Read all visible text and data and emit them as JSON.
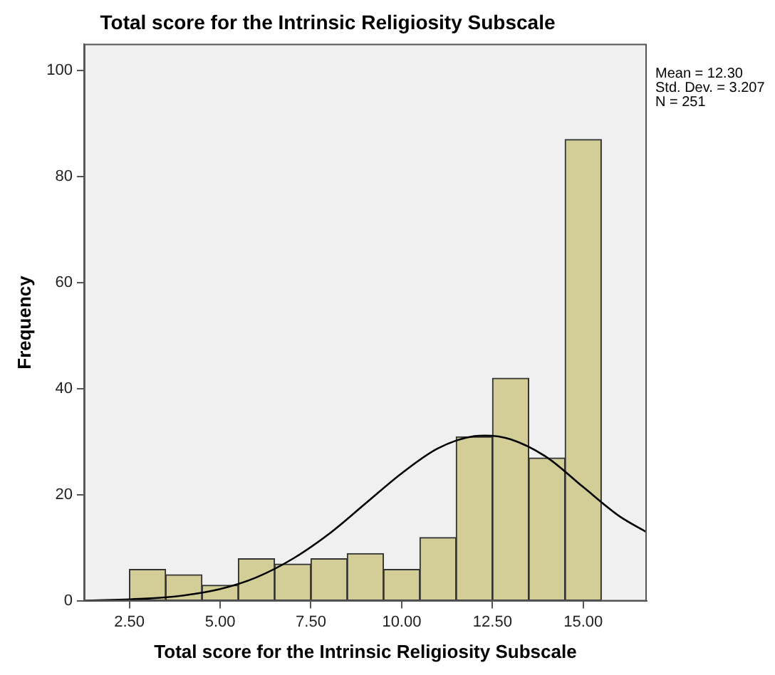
{
  "chart_data": {
    "type": "histogram",
    "title": "Total score for the Intrinsic Religiosity Subscale",
    "xlabel": "Total score for the Intrinsic Religiosity Subscale",
    "ylabel": "Frequency",
    "bins": [
      2.5,
      3.5,
      4.5,
      5.5,
      6.5,
      7.5,
      8.5,
      9.5,
      10.5,
      11.5,
      12.5,
      13.5,
      14.5,
      15.5
    ],
    "values": [
      6,
      5,
      3,
      8,
      7,
      8,
      9,
      6,
      12,
      31,
      42,
      27,
      87
    ],
    "color": "#d3ce97",
    "series": [
      {
        "type": "line",
        "color": "#000000",
        "x": [
          1.25,
          3,
          4,
          5,
          6,
          7,
          8,
          9,
          10,
          11,
          12,
          12.3,
          13,
          14,
          15,
          16,
          16.75
        ],
        "values": [
          0.1,
          0.5,
          1.1,
          2.3,
          4.5,
          8,
          12.7,
          18.4,
          24.1,
          28.8,
          31.1,
          31.2,
          30.5,
          27.1,
          21.5,
          16,
          13
        ]
      }
    ],
    "xlim": [
      1.25,
      16.75
    ],
    "ylim": [
      0,
      105
    ],
    "xticks": [
      {
        "value": 2.5,
        "label": "2.50"
      },
      {
        "value": 5,
        "label": "5.00"
      },
      {
        "value": 7.5,
        "label": "7.50"
      },
      {
        "value": 10,
        "label": "10.00"
      },
      {
        "value": 12.5,
        "label": "12.50"
      },
      {
        "value": 15,
        "label": "15.00"
      }
    ],
    "yticks": [
      0,
      20,
      40,
      60,
      80,
      100
    ],
    "annotations": [
      "Mean = 12.30",
      "Std. Dev. = 3.207",
      "N = 251"
    ],
    "grid": false,
    "legend": false,
    "marker": "none",
    "line_style": "solid"
  }
}
